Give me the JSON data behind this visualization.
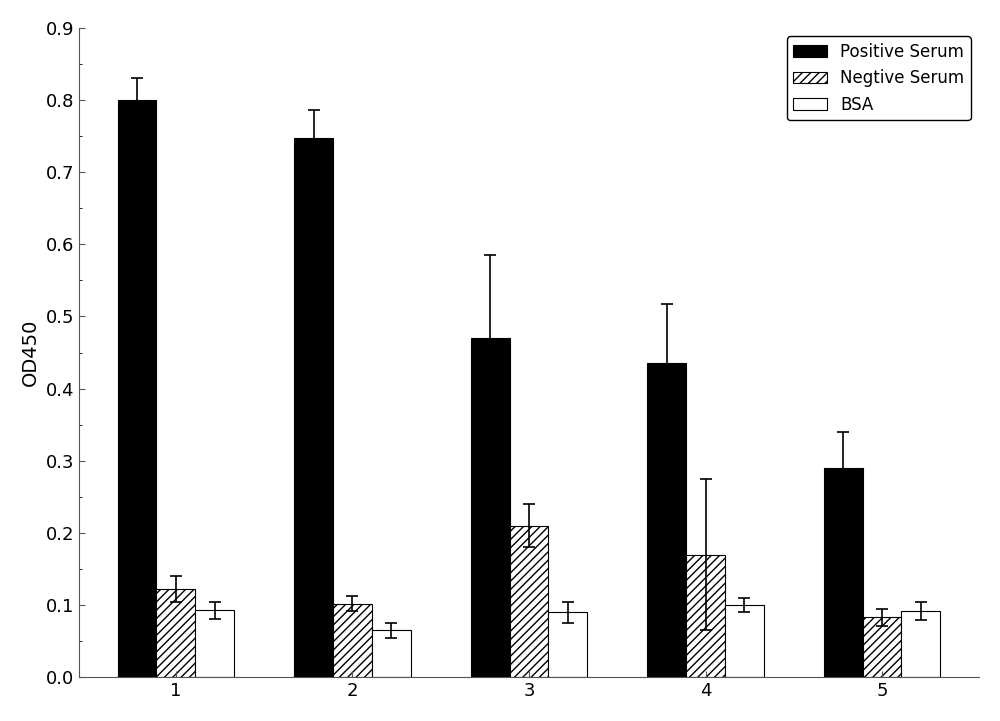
{
  "categories": [
    1,
    2,
    3,
    4,
    5
  ],
  "positive_serum": [
    0.8,
    0.748,
    0.47,
    0.435,
    0.29
  ],
  "negative_serum": [
    0.122,
    0.102,
    0.21,
    0.17,
    0.083
  ],
  "bsa": [
    0.093,
    0.065,
    0.09,
    0.1,
    0.092
  ],
  "positive_err": [
    0.03,
    0.038,
    0.115,
    0.082,
    0.05
  ],
  "negative_err": [
    0.018,
    0.01,
    0.03,
    0.105,
    0.012
  ],
  "bsa_err": [
    0.012,
    0.01,
    0.015,
    0.01,
    0.013
  ],
  "ylabel": "OD450",
  "ylim": [
    0.0,
    0.9
  ],
  "yticks": [
    0.0,
    0.1,
    0.2,
    0.3,
    0.4,
    0.5,
    0.6,
    0.7,
    0.8,
    0.9
  ],
  "legend_labels": [
    "Positive Serum",
    "Negtive Serum",
    "BSA"
  ],
  "bar_width": 0.22,
  "positive_color": "#000000",
  "negative_color": "#ffffff",
  "bsa_color": "#ffffff",
  "hatch_negative": "////",
  "background_color": "#ffffff",
  "tick_fontsize": 13,
  "label_fontsize": 14,
  "legend_fontsize": 12,
  "spine_color": "#555555"
}
